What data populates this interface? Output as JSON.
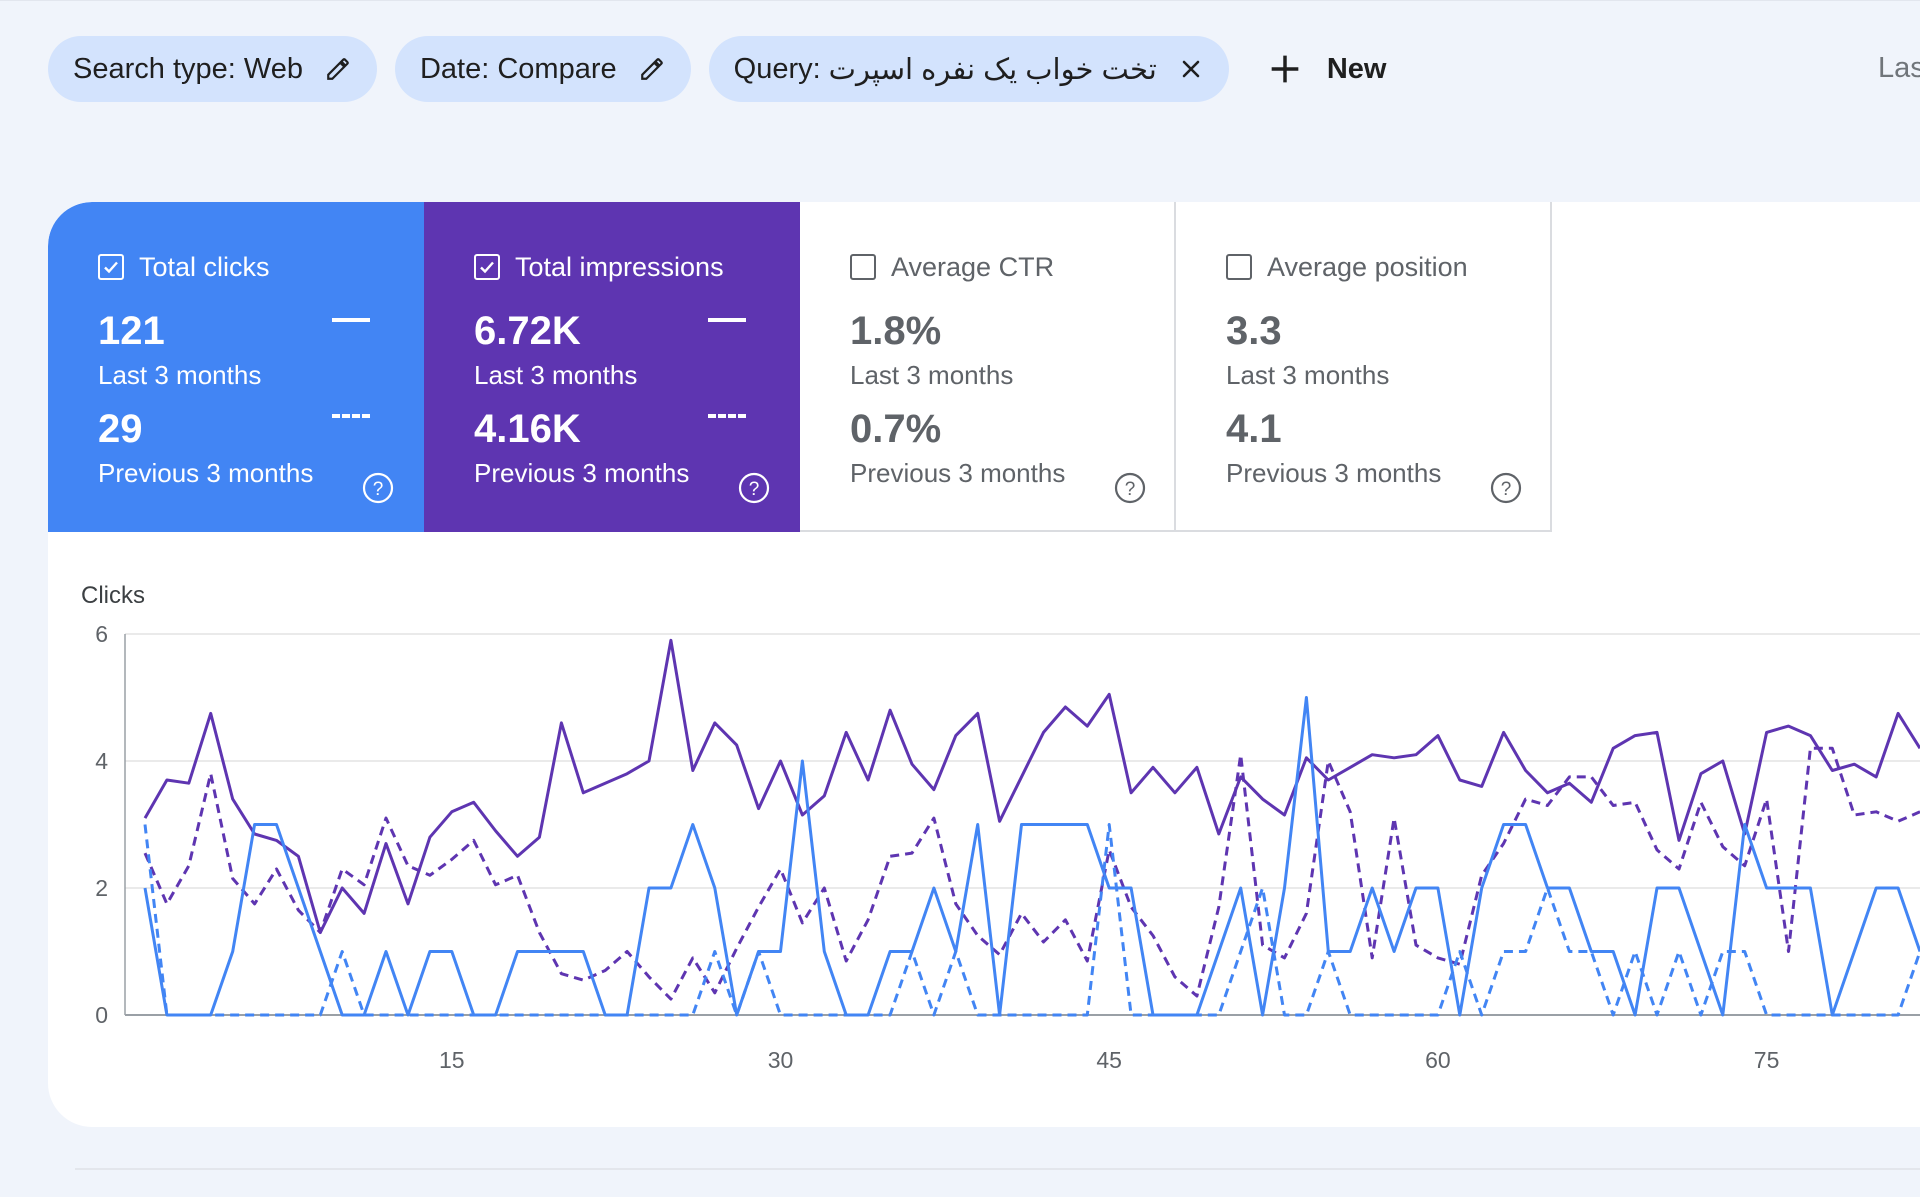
{
  "filters": [
    {
      "label": "Search type: Web",
      "icon": "pencil-icon"
    },
    {
      "label": "Date: Compare",
      "icon": "pencil-icon"
    },
    {
      "label": "Query:",
      "query": "تخت خواب یک نفره اسپرت",
      "icon": "close-icon"
    }
  ],
  "new_button": {
    "label": "New",
    "icon": "plus-icon"
  },
  "truncated_text": "Las",
  "metrics": [
    {
      "label": "Total clicks",
      "checked": true,
      "value": "121",
      "period": "Last 3 months",
      "value_prev": "29",
      "period_prev": "Previous 3 months",
      "color": "#4285f4"
    },
    {
      "label": "Total impressions",
      "checked": true,
      "value": "6.72K",
      "period": "Last 3 months",
      "value_prev": "4.16K",
      "period_prev": "Previous 3 months",
      "color": "#5e35b1"
    },
    {
      "label": "Average CTR",
      "checked": false,
      "value": "1.8%",
      "period": "Last 3 months",
      "value_prev": "0.7%",
      "period_prev": "Previous 3 months"
    },
    {
      "label": "Average position",
      "checked": false,
      "value": "3.3",
      "period": "Last 3 months",
      "value_prev": "4.1",
      "period_prev": "Previous 3 months"
    }
  ],
  "chart_data": {
    "type": "line",
    "ylabel": "Clicks",
    "ylim": [
      0,
      6
    ],
    "yticks": [
      0,
      2,
      4,
      6
    ],
    "xticks": [
      15,
      30,
      45,
      60,
      75
    ],
    "xlim": [
      1,
      82
    ],
    "grid": true,
    "series": [
      {
        "color": "#5e35b1",
        "style": "solid",
        "values": [
          3.1,
          3.7,
          3.65,
          4.75,
          3.4,
          2.85,
          2.75,
          2.5,
          1.3,
          2.0,
          1.6,
          2.7,
          1.75,
          2.8,
          3.2,
          3.35,
          2.9,
          2.5,
          2.8,
          4.6,
          3.5,
          3.65,
          3.8,
          4.0,
          5.9,
          3.85,
          4.6,
          4.25,
          3.25,
          4.0,
          3.15,
          3.45,
          4.45,
          3.7,
          4.8,
          3.95,
          3.55,
          4.4,
          4.75,
          3.05,
          3.75,
          4.45,
          4.85,
          4.55,
          5.05,
          3.5,
          3.9,
          3.5,
          3.9,
          2.85,
          3.75,
          3.4,
          3.15,
          4.05,
          3.7,
          3.9,
          4.1,
          4.05,
          4.1,
          4.4,
          3.7,
          3.6,
          4.45,
          3.85,
          3.5,
          3.65,
          3.35,
          4.2,
          4.4,
          4.45,
          2.75,
          3.8,
          4.0,
          2.85,
          4.45,
          4.55,
          4.4,
          3.85,
          3.95,
          3.75,
          4.75,
          4.2
        ]
      },
      {
        "color": "#5e35b1",
        "style": "dashed",
        "values": [
          2.55,
          1.75,
          2.35,
          3.8,
          2.15,
          1.75,
          2.3,
          1.65,
          1.3,
          2.3,
          2.05,
          3.1,
          2.35,
          2.2,
          2.45,
          2.75,
          2.05,
          2.2,
          1.3,
          0.65,
          0.55,
          0.7,
          1.0,
          0.6,
          0.25,
          0.9,
          0.35,
          1.05,
          1.7,
          2.3,
          1.45,
          2.0,
          0.85,
          1.5,
          2.5,
          2.55,
          3.1,
          1.75,
          1.25,
          0.95,
          1.6,
          1.15,
          1.5,
          0.85,
          2.6,
          1.7,
          1.25,
          0.6,
          0.3,
          1.7,
          4.1,
          1.1,
          0.9,
          1.6,
          4.0,
          3.2,
          0.9,
          3.1,
          1.1,
          0.9,
          0.8,
          2.2,
          2.7,
          3.4,
          3.3,
          3.75,
          3.75,
          3.3,
          3.35,
          2.6,
          2.3,
          3.35,
          2.65,
          2.35,
          3.4,
          1.0,
          4.2,
          4.2,
          3.15,
          3.2,
          3.05,
          3.2
        ]
      },
      {
        "color": "#4285f4",
        "style": "solid",
        "values": [
          2,
          0,
          0,
          0,
          1,
          3,
          3,
          2,
          1,
          0,
          0,
          1,
          0,
          1,
          1,
          0,
          0,
          1,
          1,
          1,
          1,
          0,
          0,
          2,
          2,
          3,
          2,
          0,
          1,
          1,
          4,
          1,
          0,
          0,
          1,
          1,
          2,
          1,
          3,
          0,
          3,
          3,
          3,
          3,
          2,
          2,
          0,
          0,
          0,
          1,
          2,
          0,
          2,
          5,
          1,
          1,
          2,
          1,
          2,
          2,
          0,
          2,
          3,
          3,
          2,
          2,
          1,
          1,
          0,
          2,
          2,
          1,
          0,
          3,
          2,
          2,
          2,
          0,
          1,
          2,
          2,
          1
        ]
      },
      {
        "color": "#4285f4",
        "style": "dashed",
        "values": [
          3,
          0,
          0,
          0,
          0,
          0,
          0,
          0,
          0,
          1,
          0,
          0,
          0,
          0,
          0,
          0,
          0,
          0,
          0,
          0,
          0,
          0,
          0,
          0,
          0,
          0,
          1,
          0,
          1,
          0,
          0,
          0,
          0,
          0,
          0,
          1,
          0,
          1,
          0,
          0,
          0,
          0,
          0,
          0,
          3,
          0,
          0,
          0,
          0,
          0,
          1,
          2,
          0,
          0,
          1,
          0,
          0,
          0,
          0,
          0,
          1,
          0,
          1,
          1,
          2,
          1,
          1,
          0,
          1,
          0,
          1,
          0,
          1,
          1,
          0,
          0,
          0,
          0,
          0,
          0,
          0,
          1
        ]
      }
    ]
  }
}
